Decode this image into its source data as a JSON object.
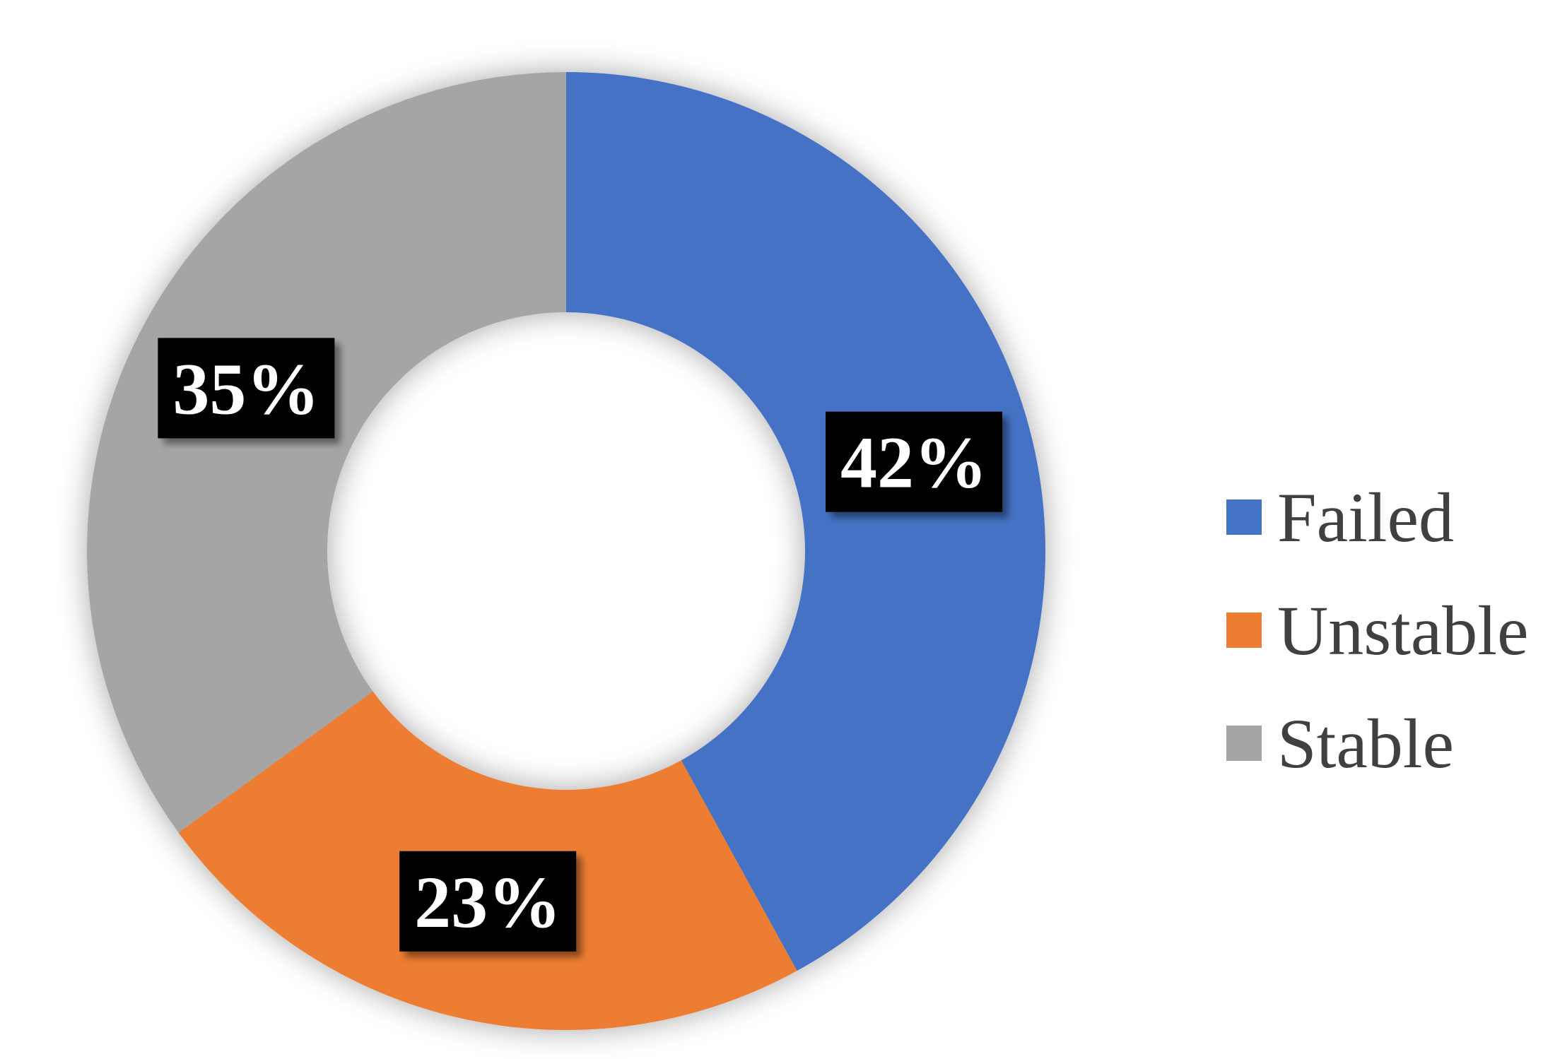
{
  "chart_data": {
    "type": "pie",
    "subtype": "donut",
    "title": "",
    "categories": [
      "Failed",
      "Unstable",
      "Stable"
    ],
    "values": [
      42,
      23,
      35
    ],
    "unit": "%",
    "data_labels": [
      "42%",
      "23%",
      "35%"
    ],
    "colors": [
      "#4472C4",
      "#ED7D31",
      "#A5A5A5"
    ],
    "legend": {
      "position": "right",
      "entries": [
        "Failed",
        "Unstable",
        "Stable"
      ]
    }
  }
}
